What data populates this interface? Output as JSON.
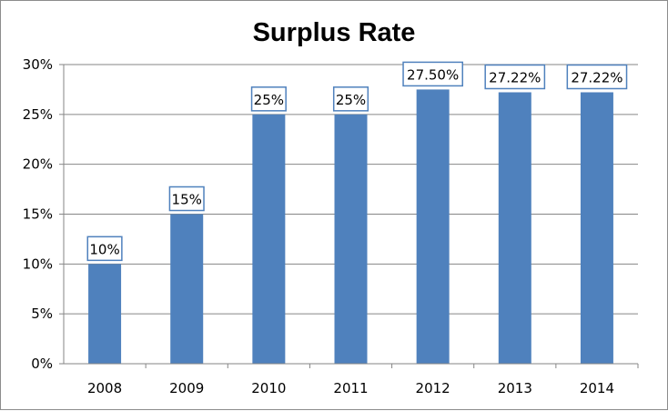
{
  "chart_data": {
    "type": "bar",
    "title": "Surplus Rate",
    "categories": [
      "2008",
      "2009",
      "2010",
      "2011",
      "2012",
      "2013",
      "2014"
    ],
    "values": [
      10,
      15,
      25,
      25,
      27.5,
      27.22,
      27.22
    ],
    "data_labels": [
      "10%",
      "15%",
      "25%",
      "25%",
      "27.50%",
      "27.22%",
      "27.22%"
    ],
    "y_ticks": [
      "0%",
      "5%",
      "10%",
      "15%",
      "20%",
      "25%",
      "30%"
    ],
    "ylim": [
      0,
      30
    ],
    "y_unit": "percent",
    "grid": true,
    "legend": "none",
    "colors": {
      "bar": "#4f81bd",
      "label_border": "#4f81bd",
      "gridline": "#868686",
      "axis": "#868686"
    }
  }
}
